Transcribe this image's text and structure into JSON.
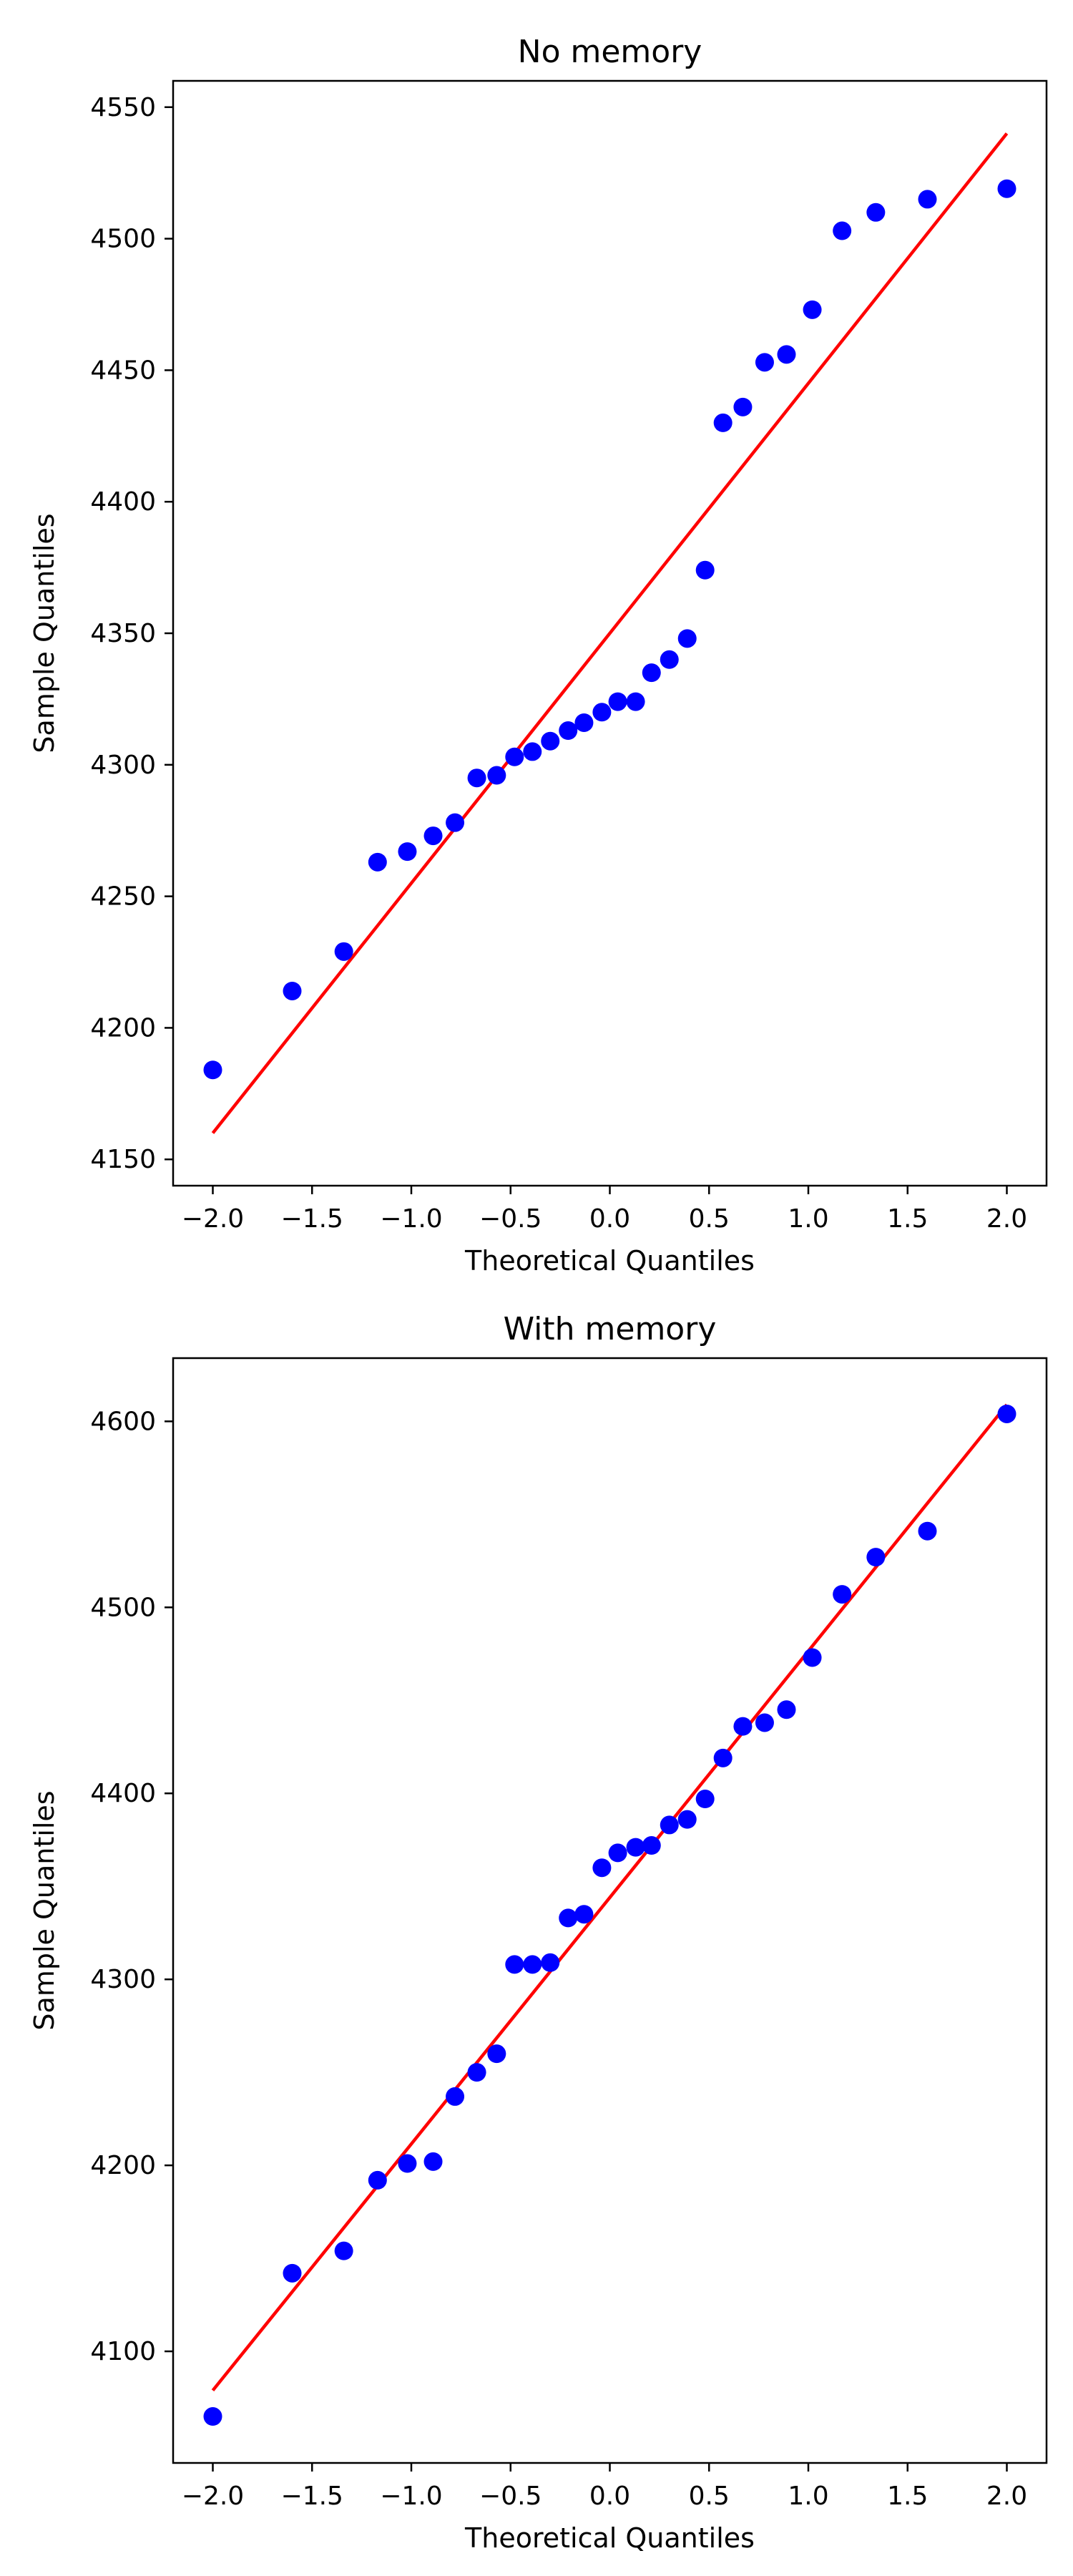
{
  "chart_data": [
    {
      "type": "scatter",
      "title": "No memory",
      "xlabel": "Theoretical Quantiles",
      "ylabel": "Sample Quantiles",
      "xlim": [
        -2.2,
        2.2
      ],
      "ylim": [
        4140,
        4560
      ],
      "xticks": [
        -2.0,
        -1.5,
        -1.0,
        -0.5,
        0.0,
        0.5,
        1.0,
        1.5,
        2.0
      ],
      "xtick_labels": [
        "−2.0",
        "−1.5",
        "−1.0",
        "−0.5",
        "0.0",
        "0.5",
        "1.0",
        "1.5",
        "2.0"
      ],
      "yticks": [
        4150,
        4200,
        4250,
        4300,
        4350,
        4400,
        4450,
        4500,
        4550
      ],
      "ytick_labels": [
        "4150",
        "4200",
        "4250",
        "4300",
        "4350",
        "4400",
        "4450",
        "4500",
        "4550"
      ],
      "grid": false,
      "point_color": "#0000ff",
      "line_color": "#ff0000",
      "points": [
        [
          -2.0,
          4184
        ],
        [
          -1.6,
          4214
        ],
        [
          -1.34,
          4229
        ],
        [
          -1.17,
          4263
        ],
        [
          -1.02,
          4267
        ],
        [
          -0.89,
          4273
        ],
        [
          -0.78,
          4278
        ],
        [
          -0.67,
          4295
        ],
        [
          -0.57,
          4296
        ],
        [
          -0.48,
          4303
        ],
        [
          -0.39,
          4305
        ],
        [
          -0.3,
          4309
        ],
        [
          -0.21,
          4313
        ],
        [
          -0.13,
          4316
        ],
        [
          -0.04,
          4320
        ],
        [
          0.04,
          4324
        ],
        [
          0.13,
          4324
        ],
        [
          0.21,
          4335
        ],
        [
          0.3,
          4340
        ],
        [
          0.39,
          4348
        ],
        [
          0.48,
          4374
        ],
        [
          0.57,
          4430
        ],
        [
          0.67,
          4436
        ],
        [
          0.78,
          4453
        ],
        [
          0.89,
          4456
        ],
        [
          1.02,
          4473
        ],
        [
          1.17,
          4503
        ],
        [
          1.34,
          4510
        ],
        [
          1.6,
          4515
        ],
        [
          2.0,
          4519
        ]
      ],
      "reference_line": [
        [
          -2.0,
          4160
        ],
        [
          2.0,
          4540
        ]
      ]
    },
    {
      "type": "scatter",
      "title": "With memory",
      "xlabel": "Theoretical Quantiles",
      "ylabel": "Sample Quantiles",
      "xlim": [
        -2.2,
        2.2
      ],
      "ylim": [
        4040,
        4634
      ],
      "xticks": [
        -2.0,
        -1.5,
        -1.0,
        -0.5,
        0.0,
        0.5,
        1.0,
        1.5,
        2.0
      ],
      "xtick_labels": [
        "−2.0",
        "−1.5",
        "−1.0",
        "−0.5",
        "0.0",
        "0.5",
        "1.0",
        "1.5",
        "2.0"
      ],
      "yticks": [
        4100,
        4200,
        4300,
        4400,
        4500,
        4600
      ],
      "ytick_labels": [
        "4100",
        "4200",
        "4300",
        "4400",
        "4500",
        "4600"
      ],
      "grid": false,
      "point_color": "#0000ff",
      "line_color": "#ff0000",
      "points": [
        [
          -2.0,
          4065
        ],
        [
          -1.6,
          4142
        ],
        [
          -1.34,
          4154
        ],
        [
          -1.17,
          4192
        ],
        [
          -1.02,
          4201
        ],
        [
          -0.89,
          4202
        ],
        [
          -0.78,
          4237
        ],
        [
          -0.67,
          4250
        ],
        [
          -0.57,
          4260
        ],
        [
          -0.48,
          4308
        ],
        [
          -0.39,
          4308
        ],
        [
          -0.3,
          4309
        ],
        [
          -0.21,
          4333
        ],
        [
          -0.13,
          4335
        ],
        [
          -0.04,
          4360
        ],
        [
          0.04,
          4368
        ],
        [
          0.13,
          4371
        ],
        [
          0.21,
          4372
        ],
        [
          0.3,
          4383
        ],
        [
          0.39,
          4386
        ],
        [
          0.48,
          4397
        ],
        [
          0.57,
          4419
        ],
        [
          0.67,
          4436
        ],
        [
          0.78,
          4438
        ],
        [
          0.89,
          4445
        ],
        [
          1.02,
          4473
        ],
        [
          1.17,
          4507
        ],
        [
          1.34,
          4527
        ],
        [
          1.6,
          4541
        ],
        [
          2.0,
          4604
        ]
      ],
      "reference_line": [
        [
          -2.0,
          4079
        ],
        [
          2.0,
          4609
        ]
      ]
    }
  ]
}
